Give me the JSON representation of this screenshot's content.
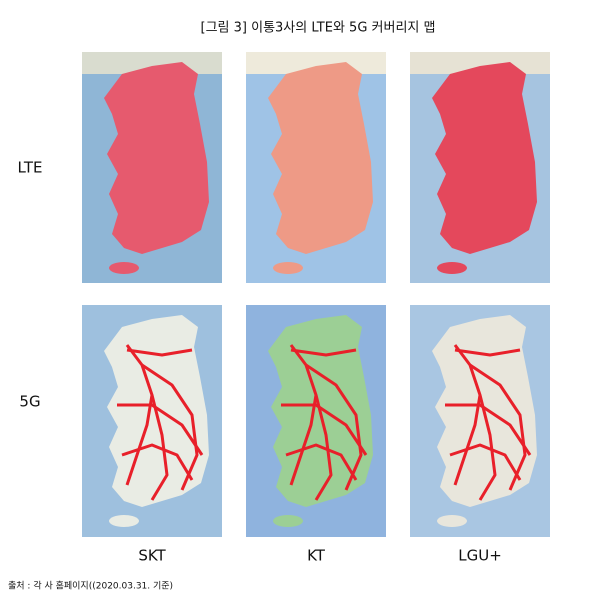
{
  "title": "[그림 3] 이통3사의 LTE와 5G 커버리지 맵",
  "rows": [
    "LTE",
    "5G"
  ],
  "columns": [
    "SKT",
    "KT",
    "LGU+"
  ],
  "source": "출처 : 각 사 홈페이지((2020.03.31. 기준)"
}
